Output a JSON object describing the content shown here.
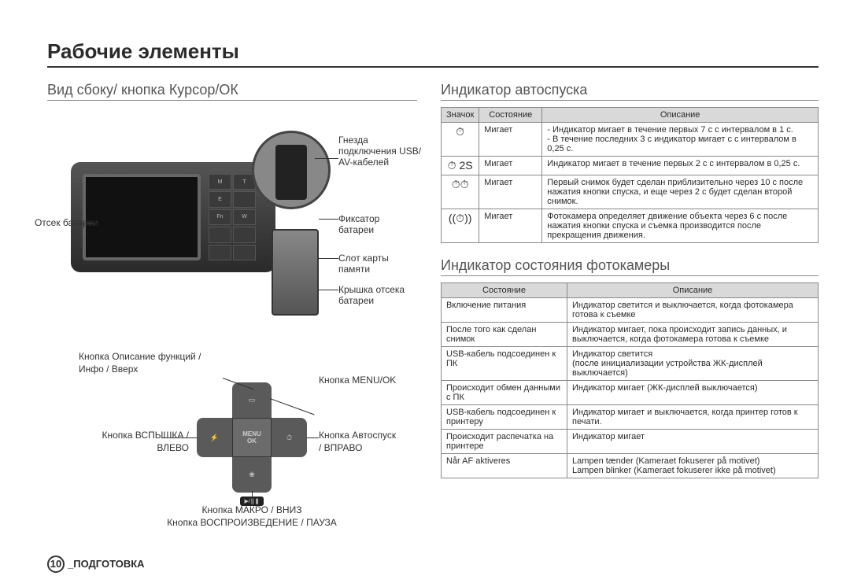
{
  "page": {
    "title": "Рабочие элементы",
    "footer_page": "10",
    "footer_section": "_ПОДГОТОВКА"
  },
  "left": {
    "heading": "Вид сбоку/ кнопка Курсор/ОК",
    "callouts": {
      "jack": "Гнезда подключения USB/ AV-кабелей",
      "battery_compartment": "Отсек батареи",
      "battery_latch": "Фиксатор батареи",
      "card_slot": "Слот карты памяти",
      "battery_cover": "Крышка отсека батареи"
    },
    "dpad": {
      "up_label_1": "Кнопка Описание функций /",
      "up_label_2": "Инфо / Вверх",
      "menu_ok": "Кнопка MENU/OK",
      "left_label_1": "Кнопка ВСПЫШКА /",
      "left_label_2": "ВЛЕВО",
      "right_label_1": "Кнопка Автоспуск",
      "right_label_2": "/ ВПРАВО",
      "down_label_1": "Кнопка МАКРО / ВНИЗ",
      "down_label_2": "Кнопка ВОСПРОИЗВЕДЕНИЕ / ПАУЗА",
      "center_top": "MENU",
      "center_bottom": "OK",
      "play_glyph": "▶/❚❚"
    }
  },
  "right": {
    "heading1": "Индикатор автоспуска",
    "table1": {
      "headers": [
        "Значок",
        "Состояние",
        "Описание"
      ],
      "rows": [
        {
          "icon": "⏱",
          "state": "Мигает",
          "desc": "- Индикатор мигает в течение первых 7 с с интервалом в 1 с.\n- В течение последних 3 с индикатор мигает с с интервалом в 0,25 с."
        },
        {
          "icon": "⏱ 2S",
          "state": "Мигает",
          "desc": "Индикатор мигает в течение первых 2 с с интервалом в 0,25 с."
        },
        {
          "icon": "⏱⏱",
          "state": "Мигает",
          "desc": "Первый снимок будет сделан приблизительно через 10 с после нажатия кнопки спуска, и еще через 2 с будет сделан второй снимок."
        },
        {
          "icon": "((⏱))",
          "state": "Мигает",
          "desc": "Фотокамера определяет движение объекта через 6 с после нажатия кнопки спуска и съемка производится после прекращения движения."
        }
      ]
    },
    "heading2": "Индикатор состояния фотокамеры",
    "table2": {
      "headers": [
        "Состояние",
        "Описание"
      ],
      "rows": [
        {
          "state": "Включение питания",
          "desc": "Индикатор светится и выключается, когда фотокамера готова к съемке"
        },
        {
          "state": "После того как сделан снимок",
          "desc": "Индикатор мигает, пока происходит запись данных, и выключается, когда фотокамера готова к съемке"
        },
        {
          "state": "USB-кабель подсоединен к ПК",
          "desc": "Индикатор светится\n(после инициализации устройства ЖК-дисплей выключается)"
        },
        {
          "state": "Происходит обмен данными с ПК",
          "desc": "Индикатор мигает (ЖК-дисплей выключается)"
        },
        {
          "state": "USB-кабель подсоединен к принтеру",
          "desc": "Индикатор мигает и выключается, когда принтер готов к печати."
        },
        {
          "state": "Происходит распечатка на принтере",
          "desc": "Индикатор мигает"
        },
        {
          "state": "Når AF aktiveres",
          "desc": "Lampen tænder (Kameraet fokuserer på motivet)\nLampen blinker (Kameraet fokuserer ikke på motivet)"
        }
      ]
    }
  }
}
